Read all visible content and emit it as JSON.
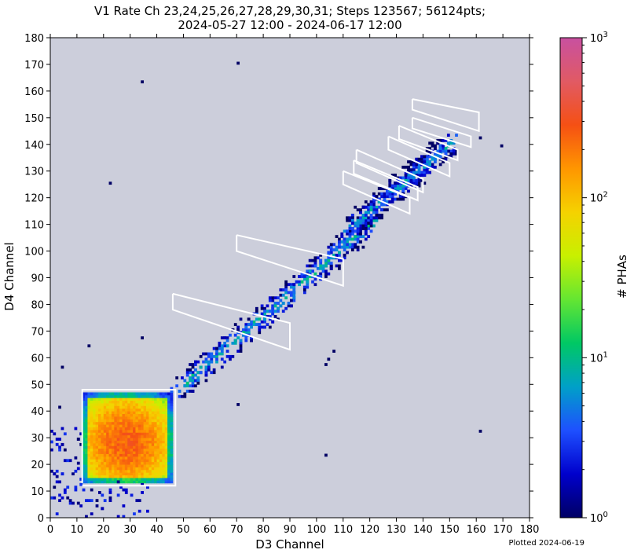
{
  "title_line1": "V1 Rate Ch 23,24,25,26,27,28,29,30,31; Steps 123567; 56124pts;",
  "title_line2": "2024-05-27 12:00 - 2024-06-17 12:00",
  "footnote": "Plotted 2024-06-19",
  "colorbar": {
    "label": "# PHAs",
    "scale": "log",
    "range": [
      1,
      1000
    ],
    "tick_labels": [
      "10^0",
      "10^1",
      "10^2",
      "10^3"
    ],
    "colormap": [
      "#000064",
      "#0000cc",
      "#1e50ff",
      "#00a0c8",
      "#00c864",
      "#64e632",
      "#c8f000",
      "#f5d200",
      "#ff9600",
      "#f55014",
      "#e15a64",
      "#c850a0"
    ]
  },
  "chart_data": {
    "type": "heatmap",
    "xlabel": "D3 Channel",
    "ylabel": "D4 Channel",
    "xlim": [
      0,
      180
    ],
    "ylim": [
      0,
      180
    ],
    "x_ticks": [
      0,
      10,
      20,
      30,
      40,
      50,
      60,
      70,
      80,
      90,
      100,
      110,
      120,
      130,
      140,
      150,
      160,
      170,
      180
    ],
    "y_ticks": [
      0,
      10,
      20,
      30,
      40,
      50,
      60,
      70,
      80,
      90,
      100,
      110,
      120,
      130,
      140,
      150,
      160,
      170,
      180
    ],
    "background_color": "#cccedb",
    "blobs": [
      {
        "region": "low-energy box",
        "x": [
          12,
          46
        ],
        "y": [
          13,
          47
        ],
        "peak_xy": [
          28,
          28
        ],
        "peak_counts": 300
      },
      {
        "region": "diagonal track",
        "from": [
          47,
          47
        ],
        "to": [
          120,
          110
        ],
        "counts": 10
      },
      {
        "region": "upper track",
        "from": [
          112,
          108
        ],
        "to": [
          150,
          140
        ],
        "counts": 8
      }
    ],
    "isolated_points": [
      [
        70,
        170
      ],
      [
        34,
        163
      ],
      [
        22,
        125
      ],
      [
        161,
        32
      ],
      [
        103,
        23
      ],
      [
        4,
        56
      ],
      [
        14,
        64
      ],
      [
        34,
        67
      ],
      [
        70,
        42
      ],
      [
        3,
        41
      ],
      [
        161,
        142
      ],
      [
        169,
        139
      ],
      [
        106,
        62
      ],
      [
        104,
        59
      ],
      [
        103,
        57
      ]
    ],
    "polygons": [
      {
        "name": "box",
        "points": [
          [
            12,
            13
          ],
          [
            12,
            48
          ],
          [
            47,
            48
          ],
          [
            47,
            12
          ],
          [
            12,
            12
          ]
        ]
      },
      {
        "name": "band-1",
        "points": [
          [
            46,
            84
          ],
          [
            46,
            78
          ],
          [
            90,
            63
          ],
          [
            90,
            73
          ],
          [
            46,
            84
          ]
        ]
      },
      {
        "name": "band-2",
        "points": [
          [
            70,
            106
          ],
          [
            70,
            100
          ],
          [
            110,
            87
          ],
          [
            110,
            97
          ],
          [
            70,
            106
          ]
        ]
      },
      {
        "name": "band-3",
        "points": [
          [
            110,
            130
          ],
          [
            110,
            125
          ],
          [
            135,
            114
          ],
          [
            135,
            120
          ],
          [
            110,
            130
          ]
        ]
      },
      {
        "name": "band-4",
        "points": [
          [
            114,
            134
          ],
          [
            114,
            129
          ],
          [
            138,
            119
          ],
          [
            138,
            124
          ],
          [
            114,
            134
          ]
        ]
      },
      {
        "name": "band-5",
        "points": [
          [
            115,
            138
          ],
          [
            115,
            133
          ],
          [
            140,
            122
          ],
          [
            140,
            127
          ],
          [
            115,
            138
          ]
        ]
      },
      {
        "name": "band-6",
        "points": [
          [
            127,
            143
          ],
          [
            127,
            138
          ],
          [
            150,
            128
          ],
          [
            150,
            133
          ],
          [
            127,
            143
          ]
        ]
      },
      {
        "name": "band-7",
        "points": [
          [
            131,
            147
          ],
          [
            131,
            142
          ],
          [
            153,
            134
          ],
          [
            153,
            138
          ],
          [
            131,
            147
          ]
        ]
      },
      {
        "name": "band-8",
        "points": [
          [
            136,
            157
          ],
          [
            136,
            153
          ],
          [
            161,
            145
          ],
          [
            161,
            152
          ],
          [
            136,
            157
          ]
        ]
      },
      {
        "name": "band-9",
        "points": [
          [
            136,
            150
          ],
          [
            136,
            146
          ],
          [
            158,
            139
          ],
          [
            158,
            143
          ],
          [
            136,
            150
          ]
        ]
      }
    ]
  }
}
